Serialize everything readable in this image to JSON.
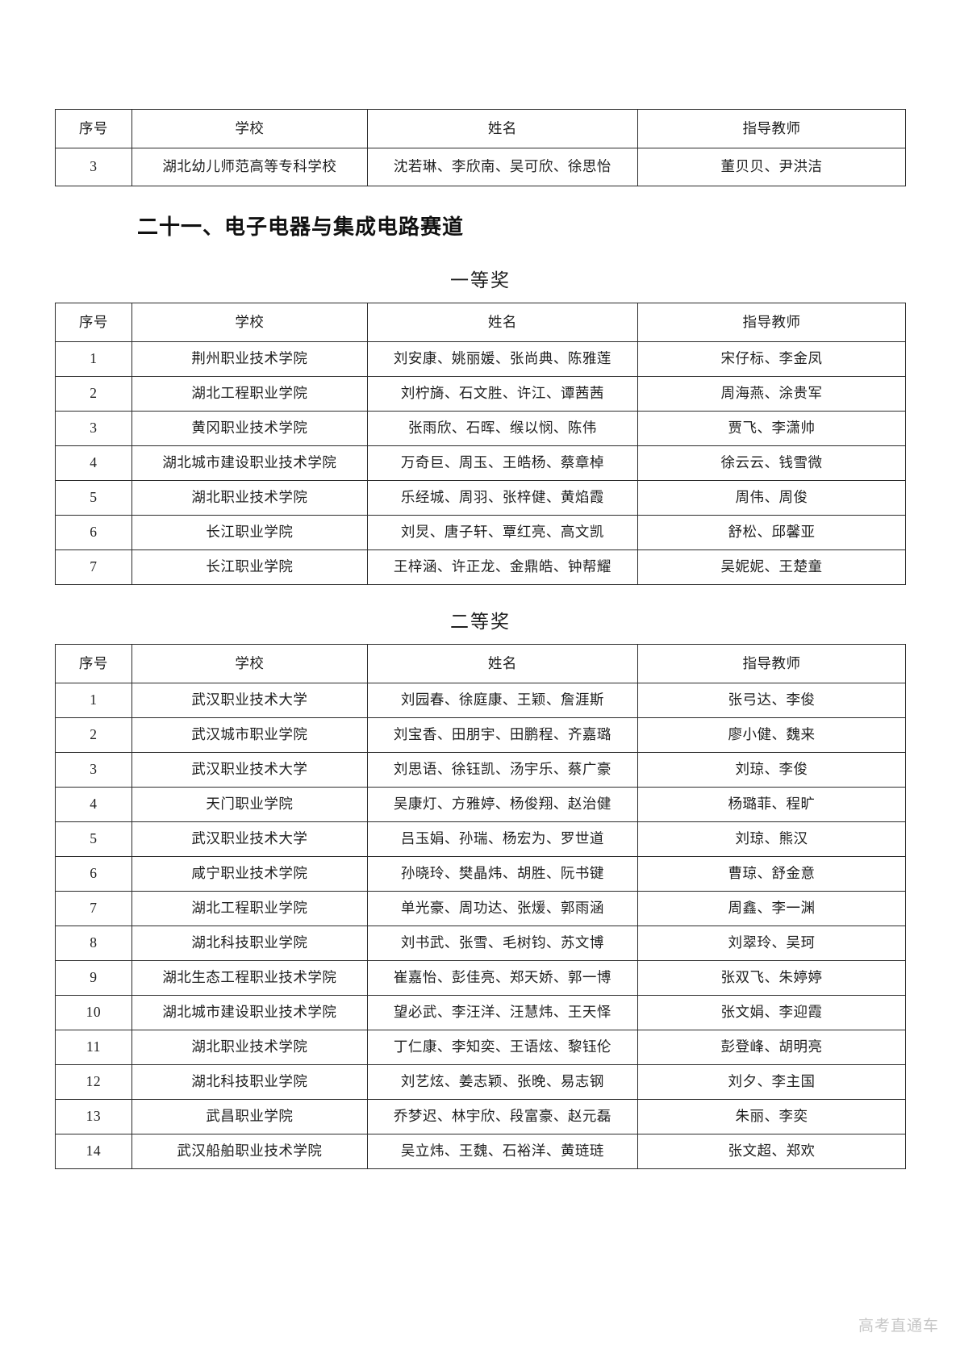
{
  "page": {
    "watermark": "高考直通车"
  },
  "section": {
    "title": "二十一、电子电器与集成电路赛道"
  },
  "carryover_table": {
    "headers": [
      "序号",
      "学校",
      "姓名",
      "指导教师"
    ],
    "rows": [
      [
        "3",
        "湖北幼儿师范高等专科学校",
        "沈若琳、李欣南、吴可欣、徐思怡",
        "董贝贝、尹洪洁"
      ]
    ]
  },
  "first_prize": {
    "label": "一等奖",
    "headers": [
      "序号",
      "学校",
      "姓名",
      "指导教师"
    ],
    "rows": [
      [
        "1",
        "荆州职业技术学院",
        "刘安康、姚丽媛、张尚典、陈雅莲",
        "宋仔标、李金凤"
      ],
      [
        "2",
        "湖北工程职业学院",
        "刘柠旖、石文胜、许江、谭茜茜",
        "周海燕、涂贵军"
      ],
      [
        "3",
        "黄冈职业技术学院",
        "张雨欣、石晖、缑以悯、陈伟",
        "贾飞、李潇帅"
      ],
      [
        "4",
        "湖北城市建设职业技术学院",
        "万奇巨、周玉、王皓杨、蔡章棹",
        "徐云云、钱雪微"
      ],
      [
        "5",
        "湖北职业技术学院",
        "乐经城、周羽、张梓健、黄焰霞",
        "周伟、周俊"
      ],
      [
        "6",
        "长江职业学院",
        "刘炅、唐子轩、覃红亮、高文凯",
        "舒松、邱馨亚"
      ],
      [
        "7",
        "长江职业学院",
        "王梓涵、许正龙、金鼎皓、钟帮耀",
        "吴妮妮、王楚童"
      ]
    ]
  },
  "second_prize": {
    "label": "二等奖",
    "headers": [
      "序号",
      "学校",
      "姓名",
      "指导教师"
    ],
    "rows": [
      [
        "1",
        "武汉职业技术大学",
        "刘园春、徐庭康、王颖、詹涯斯",
        "张弓达、李俊"
      ],
      [
        "2",
        "武汉城市职业学院",
        "刘宝香、田朋宇、田鹏程、齐嘉璐",
        "廖小健、魏来"
      ],
      [
        "3",
        "武汉职业技术大学",
        "刘思语、徐钰凯、汤宇乐、蔡广豪",
        "刘琼、李俊"
      ],
      [
        "4",
        "天门职业学院",
        "吴康灯、方雅婷、杨俊翔、赵治健",
        "杨璐菲、程旷"
      ],
      [
        "5",
        "武汉职业技术大学",
        "吕玉娟、孙瑞、杨宏为、罗世道",
        "刘琼、熊汉"
      ],
      [
        "6",
        "咸宁职业技术学院",
        "孙晓玲、樊晶炜、胡胜、阮书键",
        "曹琼、舒金意"
      ],
      [
        "7",
        "湖北工程职业学院",
        "单光豪、周功达、张煖、郭雨涵",
        "周鑫、李一渊"
      ],
      [
        "8",
        "湖北科技职业学院",
        "刘书武、张雪、毛树钧、苏文博",
        "刘翠玲、吴珂"
      ],
      [
        "9",
        "湖北生态工程职业技术学院",
        "崔嘉怡、彭佳亮、郑天娇、郭一博",
        "张双飞、朱婷婷"
      ],
      [
        "10",
        "湖北城市建设职业技术学院",
        "望必武、李汪洋、汪慧炜、王天怿",
        "张文娟、李迎霞"
      ],
      [
        "11",
        "湖北职业技术学院",
        "丁仁康、李知奕、王语炫、黎钰伦",
        "彭登峰、胡明亮"
      ],
      [
        "12",
        "湖北科技职业学院",
        "刘艺炫、姜志颖、张晚、易志钢",
        "刘夕、李主国"
      ],
      [
        "13",
        "武昌职业学院",
        "乔梦迟、林宇欣、段富豪、赵元磊",
        "朱丽、李奕"
      ],
      [
        "14",
        "武汉船舶职业技术学院",
        "吴立炜、王魏、石裕洋、黄琏琏",
        "张文超、郑欢"
      ]
    ]
  }
}
